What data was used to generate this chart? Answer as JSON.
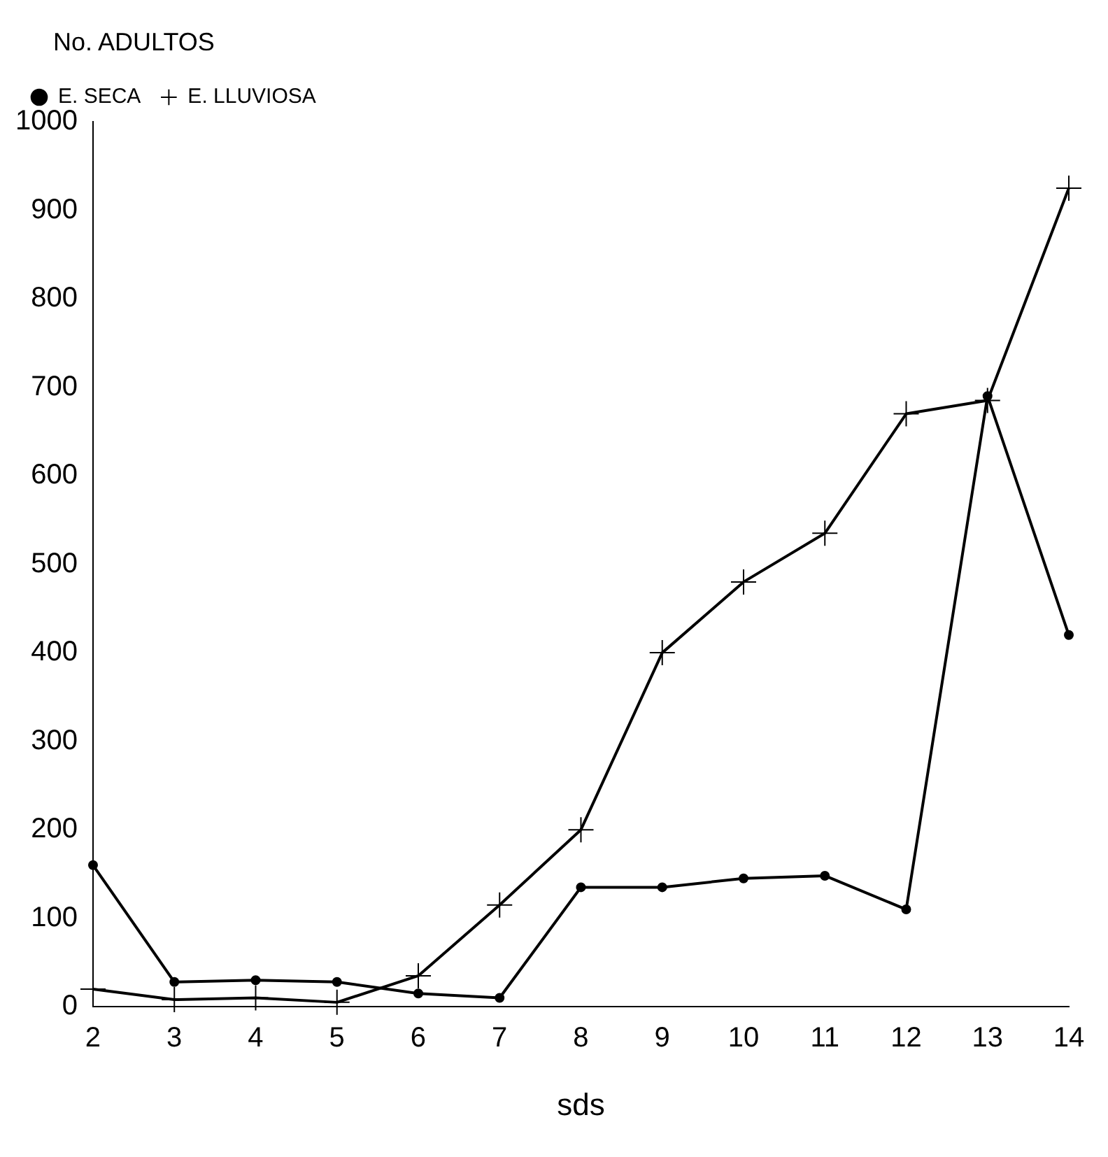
{
  "chart_data": {
    "type": "line",
    "ylabel": "No. ADULTOS",
    "xlabel": "sds",
    "x": [
      2,
      3,
      4,
      5,
      6,
      7,
      8,
      9,
      10,
      11,
      12,
      13,
      14
    ],
    "xlim": [
      2,
      14
    ],
    "xticks": [
      2,
      3,
      4,
      5,
      6,
      7,
      8,
      9,
      10,
      11,
      12,
      13,
      14
    ],
    "ylim": [
      0,
      1000
    ],
    "yticks": [
      0,
      100,
      200,
      300,
      400,
      500,
      600,
      700,
      800,
      900,
      1000
    ],
    "grid": false,
    "legend": "top left",
    "series": [
      {
        "name": "E. SECA",
        "color": "#000000",
        "marker": "circle",
        "values": [
          160,
          28,
          30,
          28,
          15,
          10,
          135,
          135,
          145,
          148,
          110,
          690,
          420
        ]
      },
      {
        "name": "E. LLUVIOSA",
        "color": "#000000",
        "marker": "cross",
        "values": [
          20,
          8,
          10,
          5,
          35,
          115,
          200,
          400,
          480,
          535,
          670,
          685,
          925
        ]
      }
    ]
  }
}
